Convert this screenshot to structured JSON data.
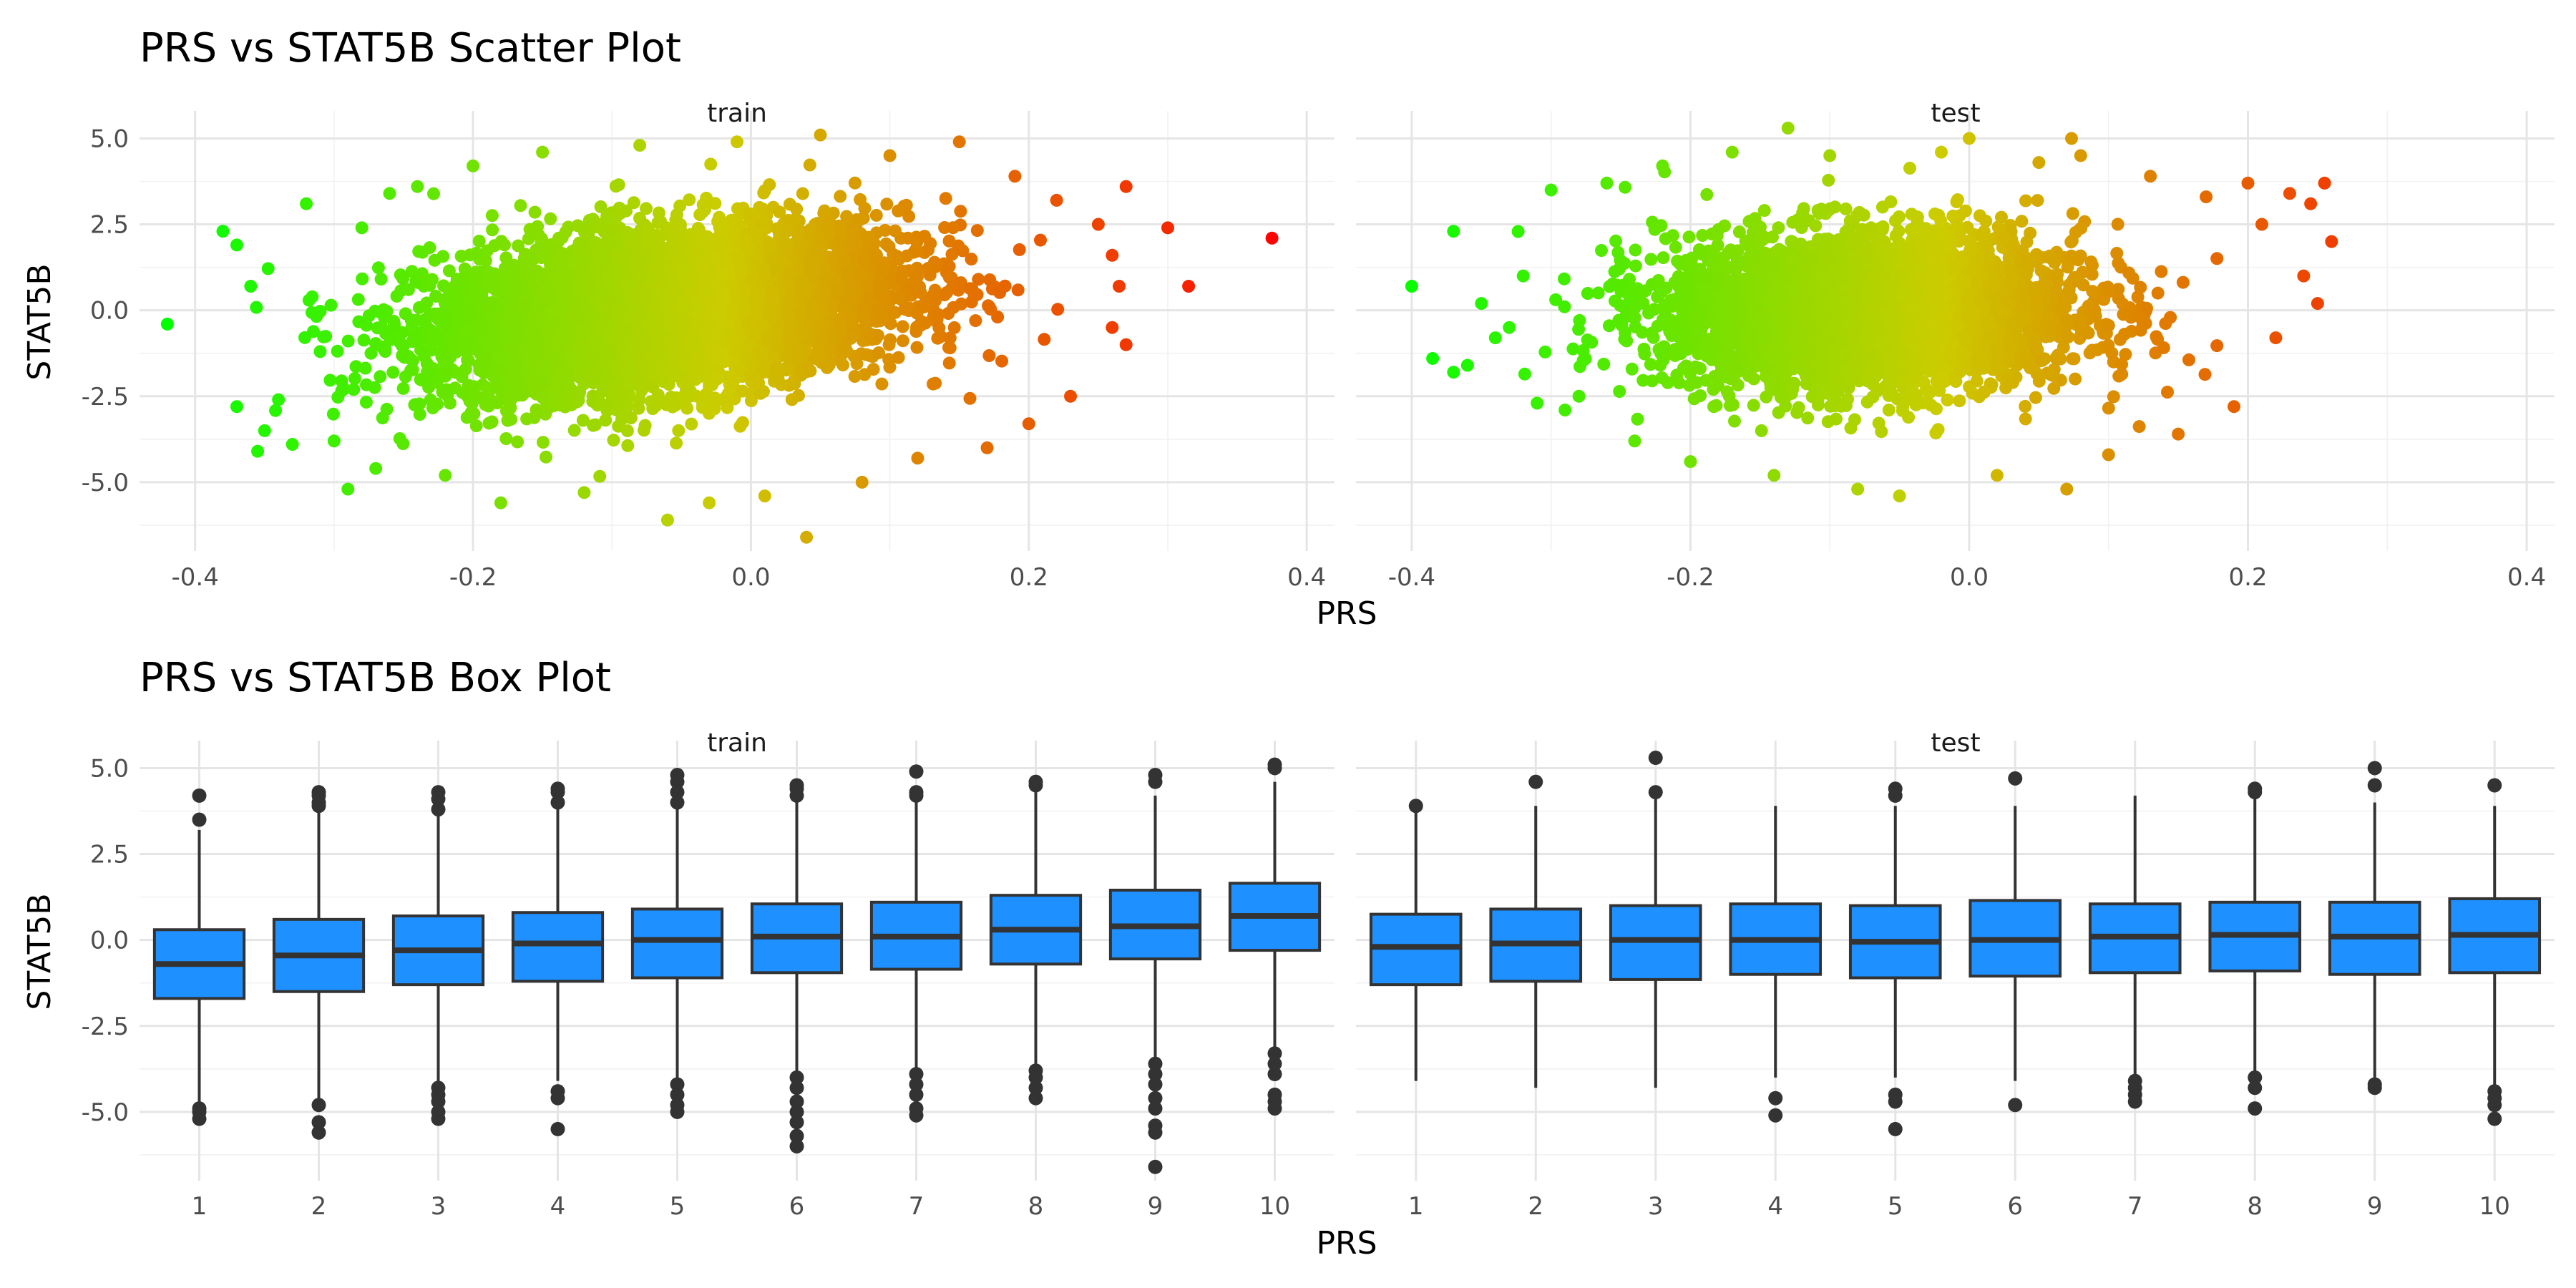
{
  "chart_data": [
    {
      "type": "scatter",
      "title": "PRS vs STAT5B Scatter Plot",
      "xlabel": "PRS",
      "ylabel": "STAT5B",
      "facets": [
        "train",
        "test"
      ],
      "xlim": [
        -0.44,
        0.42
      ],
      "ylim": [
        -7.0,
        5.8
      ],
      "x_ticks": [
        -0.4,
        -0.2,
        0.0,
        0.2,
        0.4
      ],
      "x_tick_labels": [
        "-0.4",
        "-0.2",
        "0.0",
        "0.2",
        "0.4"
      ],
      "y_ticks": [
        -5.0,
        -2.5,
        0.0,
        2.5,
        5.0
      ],
      "y_tick_labels": [
        "-5.0",
        "-2.5",
        "0.0",
        "2.5",
        "5.0"
      ],
      "grid": true,
      "legend": "none",
      "color_scale": {
        "low": "#00ff00",
        "mid": "#cccc00",
        "high": "#ff0000",
        "domain": [
          -0.42,
          0.38
        ]
      },
      "panels": [
        {
          "name": "train",
          "points": [
            [
              -0.42,
              -0.4
            ],
            [
              -0.38,
              2.3
            ],
            [
              -0.37,
              1.9
            ],
            [
              -0.36,
              0.7
            ],
            [
              -0.37,
              -2.8
            ],
            [
              -0.355,
              -4.1
            ],
            [
              -0.35,
              -3.5
            ],
            [
              -0.34,
              -2.6
            ],
            [
              -0.33,
              -3.9
            ],
            [
              -0.32,
              3.1
            ],
            [
              -0.31,
              -1.2
            ],
            [
              -0.3,
              -3.8
            ],
            [
              -0.29,
              -5.2
            ],
            [
              -0.28,
              2.4
            ],
            [
              -0.27,
              -4.6
            ],
            [
              -0.26,
              3.4
            ],
            [
              -0.24,
              3.6
            ],
            [
              -0.22,
              -4.8
            ],
            [
              -0.2,
              4.2
            ],
            [
              -0.18,
              -5.6
            ],
            [
              -0.15,
              4.6
            ],
            [
              -0.12,
              -5.3
            ],
            [
              -0.08,
              4.8
            ],
            [
              -0.06,
              -6.1
            ],
            [
              -0.03,
              -5.6
            ],
            [
              -0.01,
              4.9
            ],
            [
              0.01,
              -5.4
            ],
            [
              0.04,
              -6.6
            ],
            [
              0.05,
              5.1
            ],
            [
              0.08,
              -5.0
            ],
            [
              0.1,
              4.5
            ],
            [
              0.12,
              -4.3
            ],
            [
              0.15,
              4.9
            ],
            [
              0.17,
              -4.0
            ],
            [
              0.19,
              3.9
            ],
            [
              0.2,
              -3.3
            ],
            [
              0.22,
              3.2
            ],
            [
              0.23,
              -2.5
            ],
            [
              0.25,
              2.5
            ],
            [
              0.26,
              1.6
            ],
            [
              0.265,
              0.7
            ],
            [
              0.27,
              -1.0
            ],
            [
              0.26,
              -0.5
            ],
            [
              0.27,
              3.6
            ],
            [
              0.3,
              2.4
            ],
            [
              0.315,
              0.7
            ],
            [
              0.375,
              2.1
            ]
          ]
        },
        {
          "name": "test",
          "points": [
            [
              -0.4,
              0.7
            ],
            [
              -0.37,
              2.3
            ],
            [
              -0.385,
              -1.4
            ],
            [
              -0.37,
              -1.8
            ],
            [
              -0.36,
              -1.6
            ],
            [
              -0.35,
              0.2
            ],
            [
              -0.34,
              -0.8
            ],
            [
              -0.33,
              -0.5
            ],
            [
              -0.32,
              1.0
            ],
            [
              -0.31,
              -2.7
            ],
            [
              -0.3,
              3.5
            ],
            [
              -0.29,
              -2.9
            ],
            [
              -0.28,
              -2.5
            ],
            [
              -0.26,
              3.7
            ],
            [
              -0.24,
              -3.8
            ],
            [
              -0.22,
              4.2
            ],
            [
              -0.2,
              -4.4
            ],
            [
              -0.17,
              4.6
            ],
            [
              -0.14,
              -4.8
            ],
            [
              -0.13,
              5.3
            ],
            [
              -0.1,
              4.5
            ],
            [
              -0.08,
              -5.2
            ],
            [
              -0.05,
              -5.4
            ],
            [
              -0.02,
              4.6
            ],
            [
              0.0,
              5.0
            ],
            [
              0.02,
              -4.8
            ],
            [
              0.05,
              4.3
            ],
            [
              0.07,
              -5.2
            ],
            [
              0.08,
              4.5
            ],
            [
              0.1,
              -4.2
            ],
            [
              0.13,
              3.9
            ],
            [
              0.15,
              -3.6
            ],
            [
              0.17,
              3.3
            ],
            [
              0.19,
              -2.8
            ],
            [
              0.2,
              3.7
            ],
            [
              0.21,
              2.5
            ],
            [
              0.22,
              -0.8
            ],
            [
              0.23,
              3.4
            ],
            [
              0.24,
              1.0
            ],
            [
              0.245,
              3.1
            ],
            [
              0.25,
              0.2
            ],
            [
              0.255,
              3.7
            ],
            [
              0.26,
              2.0
            ]
          ]
        }
      ]
    },
    {
      "type": "box",
      "title": "PRS vs STAT5B Box Plot",
      "xlabel": "PRS",
      "ylabel": "STAT5B",
      "facets": [
        "train",
        "test"
      ],
      "categories": [
        "1",
        "2",
        "3",
        "4",
        "5",
        "6",
        "7",
        "8",
        "9",
        "10"
      ],
      "ylim": [
        -7.0,
        5.8
      ],
      "y_ticks": [
        -5.0,
        -2.5,
        0.0,
        2.5,
        5.0
      ],
      "y_tick_labels": [
        "-5.0",
        "-2.5",
        "0.0",
        "2.5",
        "5.0"
      ],
      "grid": true,
      "legend": "none",
      "fill_color": "#1e90ff",
      "line_color": "#333333",
      "panels": [
        {
          "name": "train",
          "boxes": [
            {
              "q1": -1.7,
              "median": -0.7,
              "q3": 0.3,
              "low": -4.7,
              "high": 3.2,
              "outliers": [
                4.2,
                3.5,
                -4.9,
                -5.0,
                -5.2
              ]
            },
            {
              "q1": -1.5,
              "median": -0.45,
              "q3": 0.6,
              "low": -4.6,
              "high": 3.7,
              "outliers": [
                4.3,
                4.2,
                4.0,
                3.9,
                -4.8,
                -5.3,
                -5.6
              ]
            },
            {
              "q1": -1.3,
              "median": -0.3,
              "q3": 0.7,
              "low": -4.2,
              "high": 3.6,
              "outliers": [
                4.3,
                4.1,
                3.8,
                -4.3,
                -4.5,
                -4.7,
                -5.0,
                -5.2
              ]
            },
            {
              "q1": -1.2,
              "median": -0.1,
              "q3": 0.8,
              "low": -4.1,
              "high": 3.8,
              "outliers": [
                4.4,
                4.3,
                4.0,
                -4.4,
                -4.6,
                -5.5
              ]
            },
            {
              "q1": -1.1,
              "median": 0.0,
              "q3": 0.9,
              "low": -4.0,
              "high": 3.9,
              "outliers": [
                4.8,
                4.6,
                4.3,
                4.0,
                -4.2,
                -4.5,
                -4.8,
                -5.0
              ]
            },
            {
              "q1": -0.95,
              "median": 0.1,
              "q3": 1.05,
              "low": -3.9,
              "high": 4.0,
              "outliers": [
                4.5,
                4.4,
                4.2,
                -4.0,
                -4.3,
                -4.7,
                -5.0,
                -5.3,
                -5.7,
                -6.0
              ]
            },
            {
              "q1": -0.85,
              "median": 0.1,
              "q3": 1.1,
              "low": -3.8,
              "high": 4.0,
              "outliers": [
                4.9,
                4.3,
                4.2,
                -3.9,
                -4.2,
                -4.5,
                -4.9,
                -5.1
              ]
            },
            {
              "q1": -0.7,
              "median": 0.3,
              "q3": 1.3,
              "low": -3.6,
              "high": 4.3,
              "outliers": [
                4.6,
                4.5,
                -3.8,
                -4.0,
                -4.3,
                -4.6
              ]
            },
            {
              "q1": -0.55,
              "median": 0.4,
              "q3": 1.45,
              "low": -3.5,
              "high": 4.2,
              "outliers": [
                4.8,
                4.6,
                -3.6,
                -3.9,
                -4.2,
                -4.6,
                -4.9,
                -5.4,
                -5.6,
                -6.6
              ]
            },
            {
              "q1": -0.3,
              "median": 0.7,
              "q3": 1.65,
              "low": -3.2,
              "high": 4.6,
              "outliers": [
                5.1,
                5.0,
                -3.3,
                -3.6,
                -3.9,
                -4.5,
                -4.7,
                -4.9
              ]
            }
          ]
        },
        {
          "name": "test",
          "boxes": [
            {
              "q1": -1.3,
              "median": -0.2,
              "q3": 0.75,
              "low": -4.1,
              "high": 3.8,
              "outliers": [
                3.9
              ]
            },
            {
              "q1": -1.2,
              "median": -0.1,
              "q3": 0.9,
              "low": -4.3,
              "high": 3.9,
              "outliers": [
                4.6
              ]
            },
            {
              "q1": -1.15,
              "median": 0.0,
              "q3": 1.0,
              "low": -4.3,
              "high": 4.1,
              "outliers": [
                5.3,
                4.3
              ]
            },
            {
              "q1": -1.0,
              "median": 0.0,
              "q3": 1.05,
              "low": -4.0,
              "high": 3.9,
              "outliers": [
                -4.6,
                -5.1
              ]
            },
            {
              "q1": -1.1,
              "median": -0.05,
              "q3": 1.0,
              "low": -4.0,
              "high": 3.9,
              "outliers": [
                4.4,
                4.2,
                -4.5,
                -4.7,
                -5.5
              ]
            },
            {
              "q1": -1.05,
              "median": 0.0,
              "q3": 1.15,
              "low": -4.1,
              "high": 3.9,
              "outliers": [
                4.7,
                -4.8
              ]
            },
            {
              "q1": -0.95,
              "median": 0.1,
              "q3": 1.05,
              "low": -3.9,
              "high": 4.2,
              "outliers": [
                -4.1,
                -4.3,
                -4.5,
                -4.7
              ]
            },
            {
              "q1": -0.9,
              "median": 0.15,
              "q3": 1.1,
              "low": -3.8,
              "high": 4.1,
              "outliers": [
                4.4,
                4.3,
                -4.0,
                -4.3,
                -4.9
              ]
            },
            {
              "q1": -1.0,
              "median": 0.1,
              "q3": 1.1,
              "low": -4.0,
              "high": 4.0,
              "outliers": [
                5.0,
                4.5,
                -4.2,
                -4.3
              ]
            },
            {
              "q1": -0.95,
              "median": 0.15,
              "q3": 1.2,
              "low": -4.3,
              "high": 3.9,
              "outliers": [
                4.5,
                -4.4,
                -4.6,
                -4.8,
                -5.2
              ]
            }
          ]
        }
      ]
    }
  ]
}
